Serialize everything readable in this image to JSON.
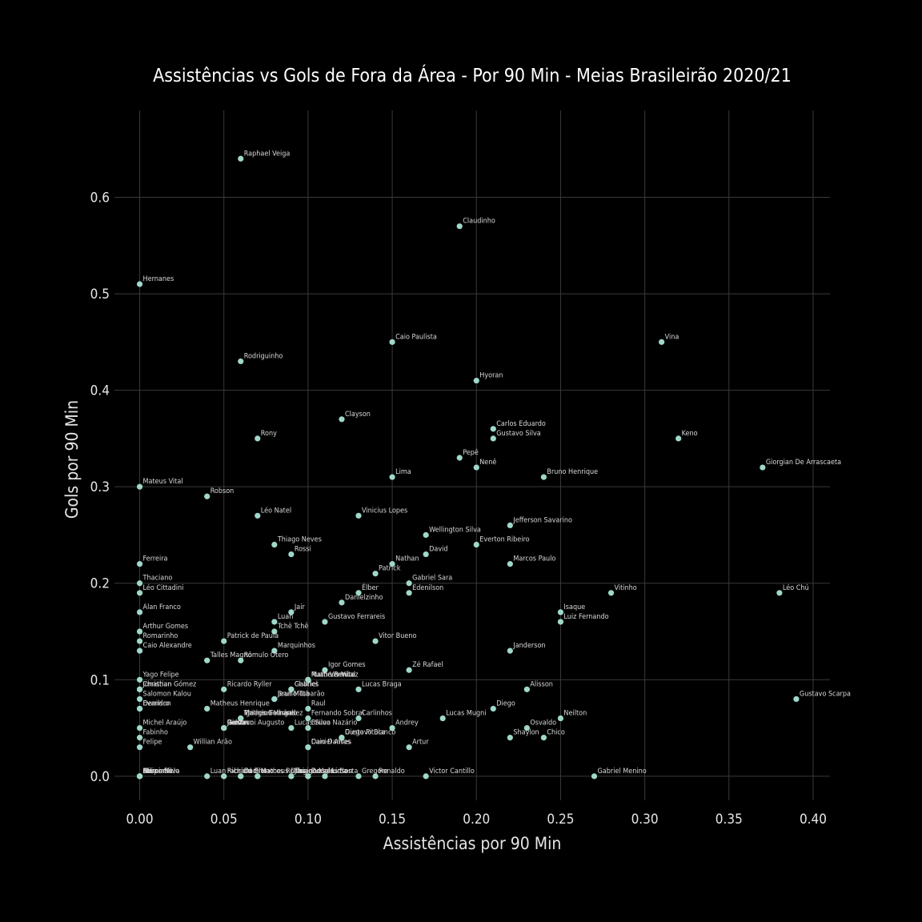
{
  "chart_data": {
    "type": "scatter",
    "title": "Assistências vs Gols de Fora da Área - Por 90 Min - Meias Brasileirão 2020/21",
    "xlabel": "Assistências por 90 Min",
    "ylabel": "Gols por 90 Min",
    "xlim": [
      -0.015,
      0.41
    ],
    "ylim": [
      -0.025,
      0.69
    ],
    "xticks": [
      0.0,
      0.05,
      0.1,
      0.15,
      0.2,
      0.25,
      0.3,
      0.35,
      0.4
    ],
    "xtick_labels": [
      "0.00",
      "0.05",
      "0.10",
      "0.15",
      "0.20",
      "0.25",
      "0.30",
      "0.35",
      "0.40"
    ],
    "yticks": [
      0.0,
      0.1,
      0.2,
      0.3,
      0.4,
      0.5,
      0.6
    ],
    "ytick_labels": [
      "0.0",
      "0.1",
      "0.2",
      "0.3",
      "0.4",
      "0.5",
      "0.6"
    ],
    "grid": true,
    "point_color": "#9fd8cb",
    "background": "#000000",
    "points": [
      {
        "label": "Raphael Veiga",
        "x": 0.06,
        "y": 0.64
      },
      {
        "label": "Claudinho",
        "x": 0.19,
        "y": 0.57
      },
      {
        "label": "Hernanes",
        "x": 0.0,
        "y": 0.51
      },
      {
        "label": "Caio Paulista",
        "x": 0.15,
        "y": 0.45
      },
      {
        "label": "Vina",
        "x": 0.31,
        "y": 0.45
      },
      {
        "label": "Rodriguinho",
        "x": 0.06,
        "y": 0.43
      },
      {
        "label": "Hyoran",
        "x": 0.2,
        "y": 0.41
      },
      {
        "label": "Clayson",
        "x": 0.12,
        "y": 0.37
      },
      {
        "label": "Carlos Eduardo",
        "x": 0.21,
        "y": 0.36
      },
      {
        "label": "Gustavo Silva",
        "x": 0.21,
        "y": 0.35
      },
      {
        "label": "Rony",
        "x": 0.07,
        "y": 0.35
      },
      {
        "label": "Keno",
        "x": 0.32,
        "y": 0.35
      },
      {
        "label": "Pepê",
        "x": 0.19,
        "y": 0.33
      },
      {
        "label": "Nenê",
        "x": 0.2,
        "y": 0.32
      },
      {
        "label": "Giorgian De Arrascaeta",
        "x": 0.37,
        "y": 0.32
      },
      {
        "label": "Lima",
        "x": 0.15,
        "y": 0.31
      },
      {
        "label": "Bruno Henrique",
        "x": 0.24,
        "y": 0.31
      },
      {
        "label": "Mateus Vital",
        "x": 0.0,
        "y": 0.3
      },
      {
        "label": "Robson",
        "x": 0.04,
        "y": 0.29
      },
      {
        "label": "Léo Natel",
        "x": 0.07,
        "y": 0.27
      },
      {
        "label": "Vinicius Lopes",
        "x": 0.13,
        "y": 0.27
      },
      {
        "label": "Jefferson Savarino",
        "x": 0.22,
        "y": 0.26
      },
      {
        "label": "Wellington Silva",
        "x": 0.17,
        "y": 0.25
      },
      {
        "label": "Thiago Neves",
        "x": 0.08,
        "y": 0.24
      },
      {
        "label": "Everton Ribeiro",
        "x": 0.2,
        "y": 0.24
      },
      {
        "label": "Rossi",
        "x": 0.09,
        "y": 0.23
      },
      {
        "label": "David",
        "x": 0.17,
        "y": 0.23
      },
      {
        "label": "Ferreira",
        "x": 0.0,
        "y": 0.22
      },
      {
        "label": "Nathan",
        "x": 0.15,
        "y": 0.22
      },
      {
        "label": "Marcos Paulo",
        "x": 0.22,
        "y": 0.22
      },
      {
        "label": "Patrick",
        "x": 0.14,
        "y": 0.21
      },
      {
        "label": "Thaciano",
        "x": 0.0,
        "y": 0.2
      },
      {
        "label": "Gabriel Sara",
        "x": 0.16,
        "y": 0.2
      },
      {
        "label": "Léo Cittadini",
        "x": 0.0,
        "y": 0.19
      },
      {
        "label": "Élber",
        "x": 0.13,
        "y": 0.19
      },
      {
        "label": "Edenilson",
        "x": 0.16,
        "y": 0.19
      },
      {
        "label": "Vitinho",
        "x": 0.28,
        "y": 0.19
      },
      {
        "label": "Léo Chú",
        "x": 0.38,
        "y": 0.19
      },
      {
        "label": "Danielzinho",
        "x": 0.12,
        "y": 0.18
      },
      {
        "label": "Alan Franco",
        "x": 0.0,
        "y": 0.17
      },
      {
        "label": "Jair",
        "x": 0.09,
        "y": 0.17
      },
      {
        "label": "Isaque",
        "x": 0.25,
        "y": 0.17
      },
      {
        "label": "Luan",
        "x": 0.08,
        "y": 0.16
      },
      {
        "label": "Gustavo Ferrareis",
        "x": 0.11,
        "y": 0.16
      },
      {
        "label": "Luiz Fernando",
        "x": 0.25,
        "y": 0.16
      },
      {
        "label": "Arthur Gomes",
        "x": 0.0,
        "y": 0.15
      },
      {
        "label": "Tchê Tchê",
        "x": 0.08,
        "y": 0.15
      },
      {
        "label": "Romarinho",
        "x": 0.0,
        "y": 0.14
      },
      {
        "label": "Patrick de Paula",
        "x": 0.05,
        "y": 0.14
      },
      {
        "label": "Vitor Bueno",
        "x": 0.14,
        "y": 0.14
      },
      {
        "label": "Caio Alexandre",
        "x": 0.0,
        "y": 0.13
      },
      {
        "label": "Marquinhos",
        "x": 0.08,
        "y": 0.13
      },
      {
        "label": "Janderson",
        "x": 0.22,
        "y": 0.13
      },
      {
        "label": "Talles Magno",
        "x": 0.04,
        "y": 0.12
      },
      {
        "label": "Rômulo Otero",
        "x": 0.06,
        "y": 0.12
      },
      {
        "label": "Igor Gomes",
        "x": 0.11,
        "y": 0.11
      },
      {
        "label": "Zé Rafael",
        "x": 0.16,
        "y": 0.11
      },
      {
        "label": "Yago Felipe",
        "x": 0.0,
        "y": 0.1
      },
      {
        "label": "Matheus Vital",
        "x": 0.1,
        "y": 0.1
      },
      {
        "label": "Martin Benítez",
        "x": 0.1,
        "y": 0.1
      },
      {
        "label": "Ruan Ventura",
        "x": 0.1,
        "y": 0.1
      },
      {
        "label": "Christian",
        "x": 0.0,
        "y": 0.09
      },
      {
        "label": "Jonathan Gómez",
        "x": 0.0,
        "y": 0.09
      },
      {
        "label": "Ricardo Ryller",
        "x": 0.05,
        "y": 0.09
      },
      {
        "label": "Gabriel",
        "x": 0.09,
        "y": 0.09
      },
      {
        "label": "Charles",
        "x": 0.09,
        "y": 0.09
      },
      {
        "label": "Lucas Braga",
        "x": 0.13,
        "y": 0.09
      },
      {
        "label": "Alisson",
        "x": 0.23,
        "y": 0.09
      },
      {
        "label": "Salomon Kalou",
        "x": 0.0,
        "y": 0.08
      },
      {
        "label": "Bruno Tubarão",
        "x": 0.08,
        "y": 0.08
      },
      {
        "label": "Jean Mota",
        "x": 0.08,
        "y": 0.08
      },
      {
        "label": "Gustavo Scarpa",
        "x": 0.39,
        "y": 0.08
      },
      {
        "label": "Denilson",
        "x": 0.0,
        "y": 0.07
      },
      {
        "label": "Evandro",
        "x": 0.0,
        "y": 0.07
      },
      {
        "label": "Matheus Henrique",
        "x": 0.04,
        "y": 0.07
      },
      {
        "label": "Raul",
        "x": 0.1,
        "y": 0.07
      },
      {
        "label": "Diego",
        "x": 0.21,
        "y": 0.07
      },
      {
        "label": "Matheus Vargas",
        "x": 0.06,
        "y": 0.06
      },
      {
        "label": "Thiago Galhardo",
        "x": 0.06,
        "y": 0.06
      },
      {
        "label": "Ignacio Fernández",
        "x": 0.06,
        "y": 0.06
      },
      {
        "label": "Fernando Sobral",
        "x": 0.1,
        "y": 0.06
      },
      {
        "label": "Carlinhos",
        "x": 0.13,
        "y": 0.06
      },
      {
        "label": "Lucas Mugni",
        "x": 0.18,
        "y": 0.06
      },
      {
        "label": "Neilton",
        "x": 0.25,
        "y": 0.06
      },
      {
        "label": "Michel Araújo",
        "x": 0.0,
        "y": 0.05
      },
      {
        "label": "Gustavo",
        "x": 0.05,
        "y": 0.05
      },
      {
        "label": "Jadson",
        "x": 0.05,
        "y": 0.05
      },
      {
        "label": "Renan",
        "x": 0.05,
        "y": 0.05
      },
      {
        "label": "Giovanni Augusto",
        "x": 0.05,
        "y": 0.05
      },
      {
        "label": "Lucas Silva",
        "x": 0.09,
        "y": 0.05
      },
      {
        "label": "Bruno Nazário",
        "x": 0.1,
        "y": 0.05
      },
      {
        "label": "Andrey",
        "x": 0.15,
        "y": 0.05
      },
      {
        "label": "Osvaldo",
        "x": 0.23,
        "y": 0.05
      },
      {
        "label": "Fabinho",
        "x": 0.0,
        "y": 0.04
      },
      {
        "label": "Diego Pituca",
        "x": 0.12,
        "y": 0.04
      },
      {
        "label": "Gustavo Blanco",
        "x": 0.12,
        "y": 0.04
      },
      {
        "label": "Shaylon",
        "x": 0.22,
        "y": 0.04
      },
      {
        "label": "Chico",
        "x": 0.24,
        "y": 0.04
      },
      {
        "label": "Felipe",
        "x": 0.0,
        "y": 0.03
      },
      {
        "label": "Willian Arão",
        "x": 0.03,
        "y": 0.03
      },
      {
        "label": "Caio Dantas",
        "x": 0.1,
        "y": 0.03
      },
      {
        "label": "Daniel Alves",
        "x": 0.1,
        "y": 0.03
      },
      {
        "label": "Artur",
        "x": 0.16,
        "y": 0.03
      },
      {
        "label": "Alison",
        "x": 0.0,
        "y": 0.0
      },
      {
        "label": "Bruno Silva",
        "x": 0.0,
        "y": 0.0
      },
      {
        "label": "Gerson",
        "x": 0.0,
        "y": 0.0
      },
      {
        "label": "Marcinho",
        "x": 0.0,
        "y": 0.0
      },
      {
        "label": "Felipe Melo",
        "x": 0.0,
        "y": 0.0
      },
      {
        "label": "Luan",
        "x": 0.04,
        "y": 0.0
      },
      {
        "label": "Richard",
        "x": 0.05,
        "y": 0.0
      },
      {
        "label": "Fabrício Bruno",
        "x": 0.05,
        "y": 0.0
      },
      {
        "label": "Danilo",
        "x": 0.06,
        "y": 0.0
      },
      {
        "label": "Dodi",
        "x": 0.06,
        "y": 0.0
      },
      {
        "label": "Matheus Dias",
        "x": 0.07,
        "y": 0.0
      },
      {
        "label": "Marcos Rocha",
        "x": 0.07,
        "y": 0.0
      },
      {
        "label": "Jorginho",
        "x": 0.09,
        "y": 0.0
      },
      {
        "label": "Thiago Maia",
        "x": 0.09,
        "y": 0.0
      },
      {
        "label": "Douglas Costa",
        "x": 0.1,
        "y": 0.0
      },
      {
        "label": "Lucas Lima",
        "x": 0.1,
        "y": 0.0
      },
      {
        "label": "Hudson",
        "x": 0.11,
        "y": 0.0
      },
      {
        "label": "Gregore",
        "x": 0.13,
        "y": 0.0
      },
      {
        "label": "Ronaldo",
        "x": 0.14,
        "y": 0.0
      },
      {
        "label": "Victor Cantillo",
        "x": 0.17,
        "y": 0.0
      },
      {
        "label": "Gabriel Menino",
        "x": 0.27,
        "y": 0.0
      }
    ]
  }
}
